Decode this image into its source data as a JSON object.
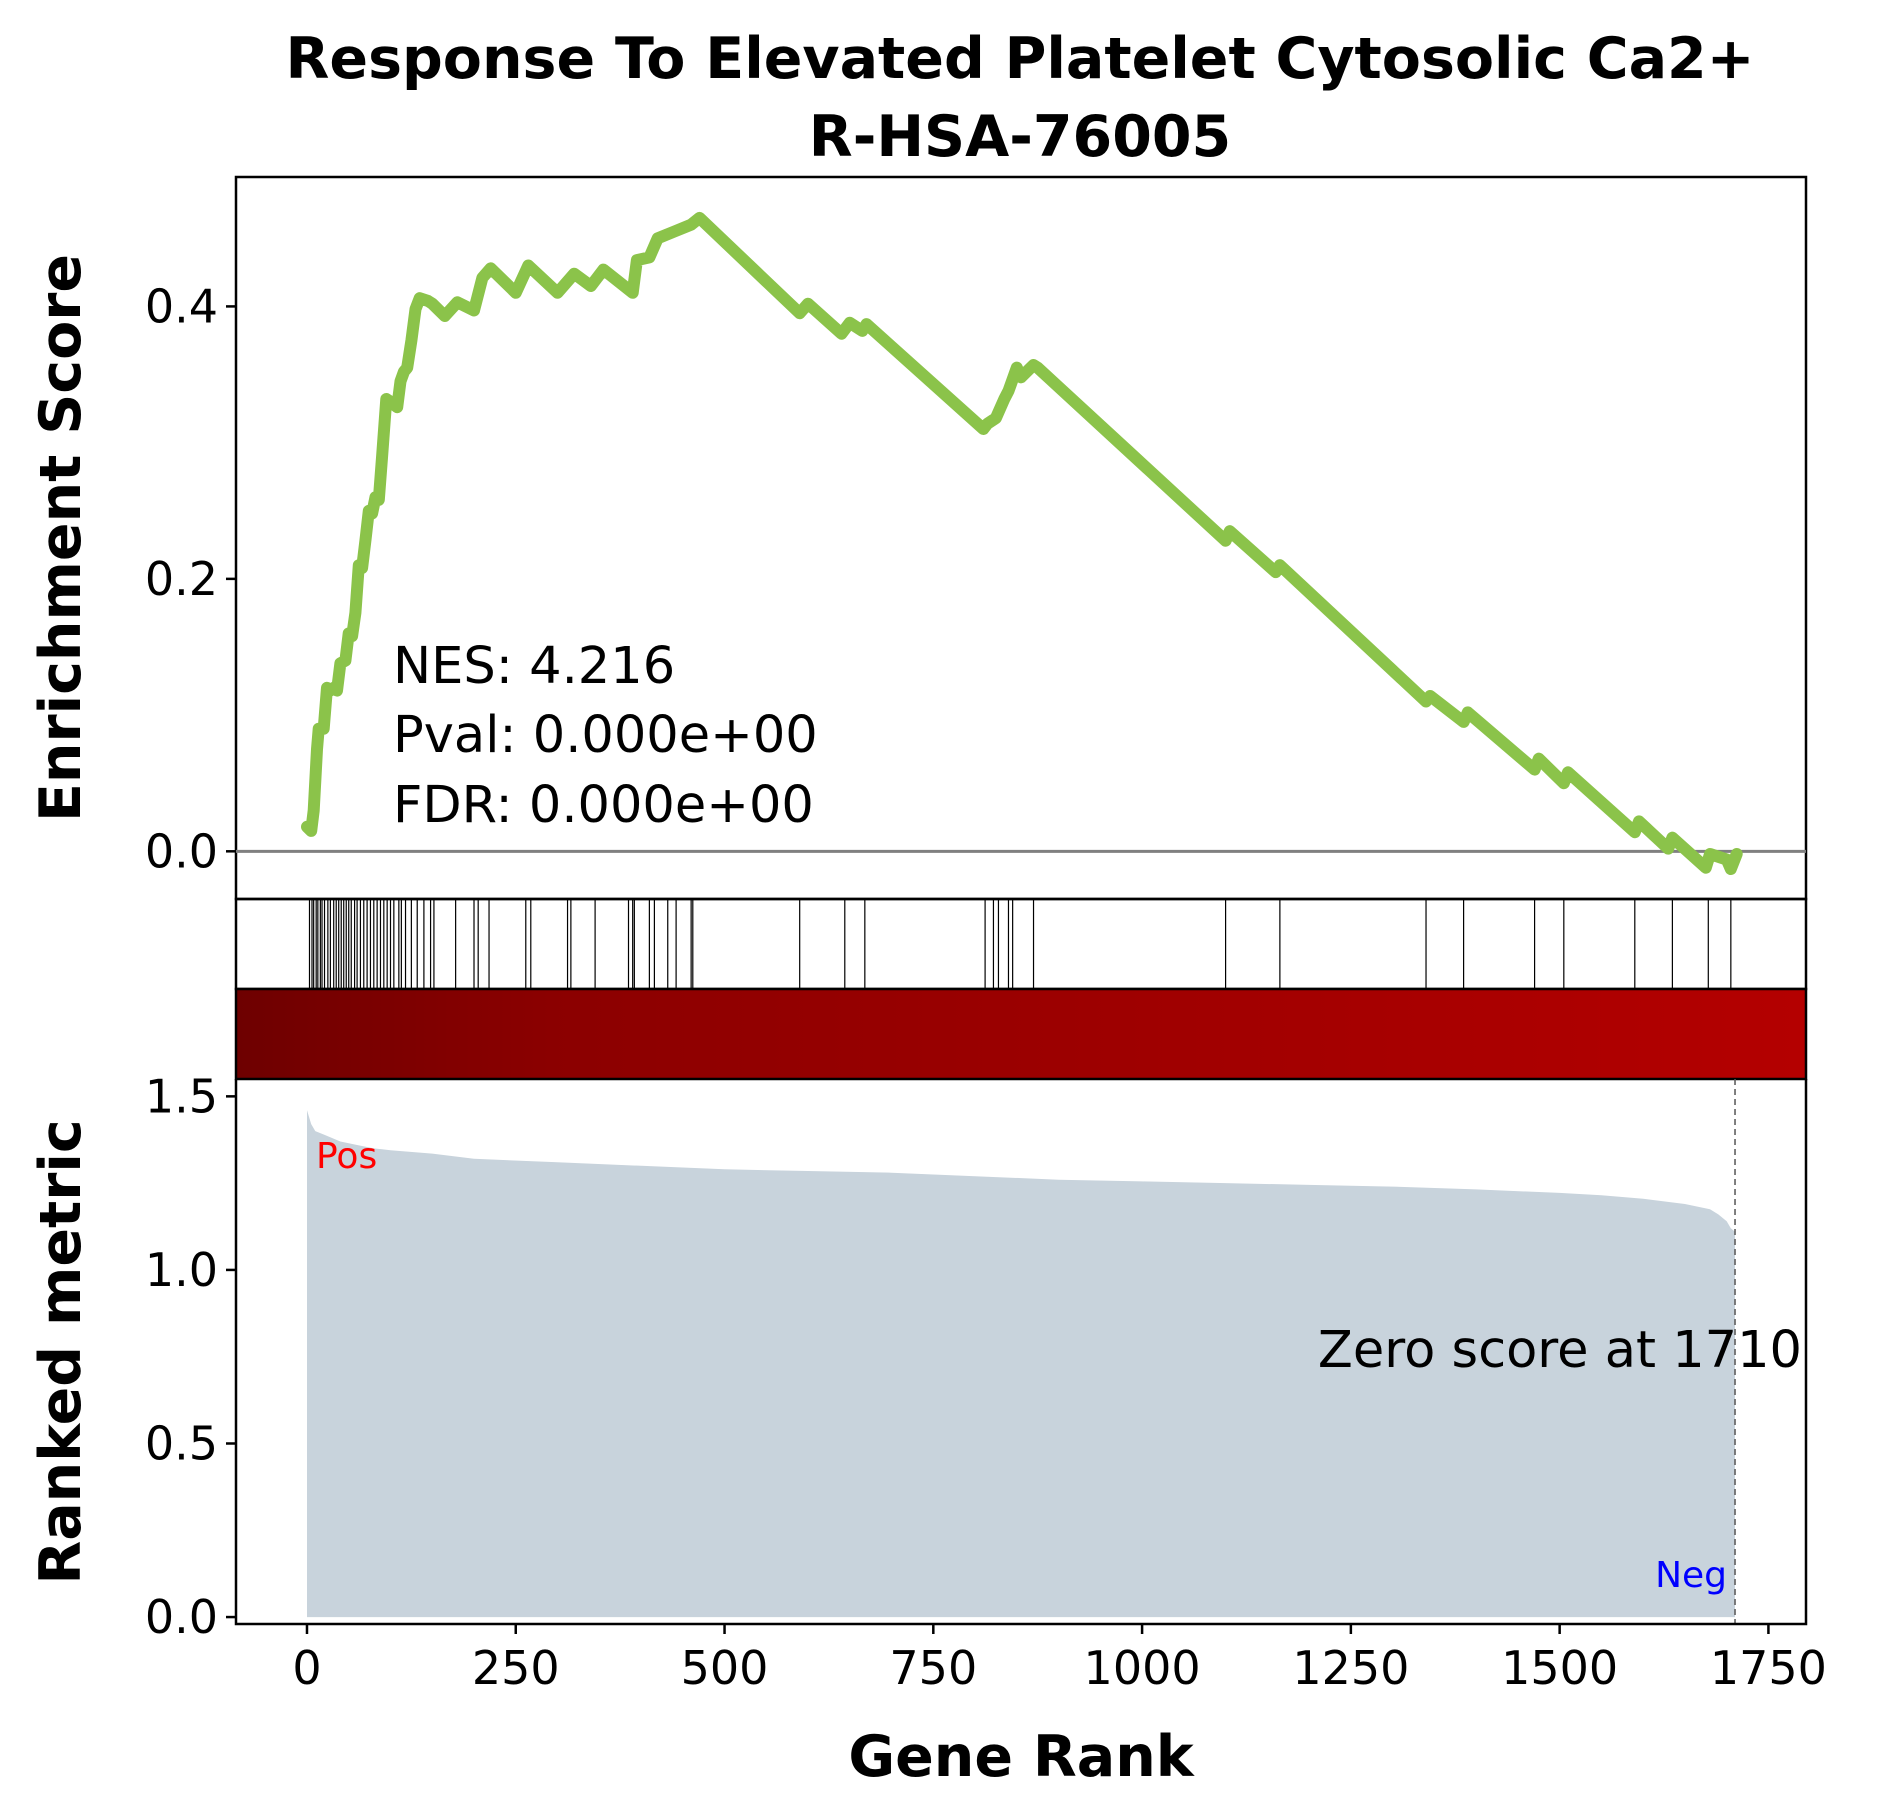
{
  "chart_data": {
    "type": "line",
    "title_line1": "Response To Elevated Platelet Cytosolic Ca2+",
    "title_line2": "R-HSA-76005",
    "xlabel": "Gene Rank",
    "ylabel_top": "Enrichment Score",
    "ylabel_bottom": "Ranked metric",
    "xlim": [
      -85,
      1795
    ],
    "es_ylim": [
      -0.035,
      0.495
    ],
    "metric_ylim": [
      -0.02,
      1.55
    ],
    "x_ticks": [
      "0",
      "250",
      "500",
      "750",
      "1000",
      "1250",
      "1500",
      "1750"
    ],
    "es_ticks": [
      "0.0",
      "0.2",
      "0.4"
    ],
    "metric_ticks": [
      "0.0",
      "0.5",
      "1.0",
      "1.5"
    ],
    "stats": {
      "nes": "NES: 4.216",
      "pval": "Pval: 0.000e+00",
      "fdr": "FDR: 0.000e+00"
    },
    "zero_score_label": "Zero score at 1710",
    "zero_score_rank": 1710,
    "pos_label": "Pos",
    "neg_label": "Neg",
    "line_color": "#8bc34a",
    "baseline_color": "#808080",
    "metric_fill_color": "#c8d3dc",
    "pos_color": "#ff0000",
    "neg_color": "#0000ff",
    "heatbar_colors": [
      "#6e0000",
      "#8b0000",
      "#a00000",
      "#b40000"
    ],
    "enrichment_series": {
      "name": "",
      "x": [
        0,
        5,
        8,
        12,
        14,
        20,
        24,
        28,
        32,
        36,
        40,
        46,
        50,
        54,
        58,
        62,
        66,
        70,
        74,
        78,
        82,
        86,
        90,
        95,
        100,
        104,
        108,
        112,
        116,
        120,
        125,
        130,
        135,
        140,
        145,
        150,
        165,
        180,
        200,
        210,
        220,
        250,
        265,
        300,
        320,
        340,
        355,
        390,
        395,
        410,
        420,
        440,
        460,
        470,
        590,
        600,
        640,
        650,
        665,
        670,
        810,
        815,
        825,
        835,
        840,
        850,
        855,
        870,
        875,
        1100,
        1105,
        1160,
        1165,
        1340,
        1345,
        1385,
        1390,
        1470,
        1475,
        1505,
        1510,
        1590,
        1595,
        1630,
        1635,
        1675,
        1680,
        1700,
        1705,
        1712
      ],
      "y": [
        0.018,
        0.015,
        0.03,
        0.075,
        0.09,
        0.09,
        0.12,
        0.118,
        0.12,
        0.118,
        0.138,
        0.14,
        0.16,
        0.158,
        0.175,
        0.21,
        0.208,
        0.228,
        0.25,
        0.248,
        0.26,
        0.258,
        0.29,
        0.332,
        0.33,
        0.328,
        0.326,
        0.345,
        0.352,
        0.355,
        0.375,
        0.398,
        0.406,
        0.405,
        0.404,
        0.402,
        0.393,
        0.403,
        0.397,
        0.421,
        0.428,
        0.41,
        0.43,
        0.41,
        0.424,
        0.415,
        0.427,
        0.41,
        0.434,
        0.436,
        0.45,
        0.455,
        0.46,
        0.465,
        0.395,
        0.402,
        0.38,
        0.388,
        0.382,
        0.387,
        0.31,
        0.314,
        0.318,
        0.332,
        0.338,
        0.355,
        0.348,
        0.357,
        0.355,
        0.228,
        0.235,
        0.205,
        0.21,
        0.11,
        0.114,
        0.095,
        0.102,
        0.06,
        0.068,
        0.05,
        0.058,
        0.014,
        0.022,
        0.002,
        0.01,
        -0.012,
        -0.002,
        -0.006,
        -0.013,
        -0.002
      ]
    },
    "hit_ranks": [
      3,
      6,
      8,
      11,
      13,
      16,
      18,
      21,
      25,
      28,
      32,
      35,
      38,
      41,
      44,
      47,
      50,
      53,
      57,
      60,
      64,
      68,
      72,
      76,
      80,
      84,
      88,
      92,
      96,
      100,
      104,
      110,
      113,
      118,
      125,
      132,
      140,
      148,
      152,
      178,
      200,
      205,
      218,
      262,
      268,
      312,
      316,
      345,
      385,
      390,
      392,
      410,
      416,
      432,
      442,
      460,
      462,
      590,
      644,
      668,
      812,
      822,
      828,
      840,
      845,
      870,
      1100,
      1165,
      1340,
      1385,
      1470,
      1505,
      1590,
      1635,
      1678,
      1705
    ],
    "metric_series": {
      "x": [
        0,
        5,
        10,
        20,
        40,
        60,
        80,
        100,
        150,
        200,
        300,
        400,
        500,
        600,
        700,
        800,
        900,
        1000,
        1100,
        1200,
        1300,
        1400,
        1500,
        1550,
        1600,
        1650,
        1680,
        1690,
        1700,
        1705,
        1710
      ],
      "y": [
        1.46,
        1.42,
        1.4,
        1.39,
        1.37,
        1.36,
        1.35,
        1.345,
        1.335,
        1.32,
        1.31,
        1.3,
        1.29,
        1.285,
        1.28,
        1.27,
        1.26,
        1.255,
        1.25,
        1.245,
        1.24,
        1.232,
        1.222,
        1.215,
        1.205,
        1.19,
        1.175,
        1.16,
        1.14,
        1.12,
        1.11
      ]
    }
  }
}
